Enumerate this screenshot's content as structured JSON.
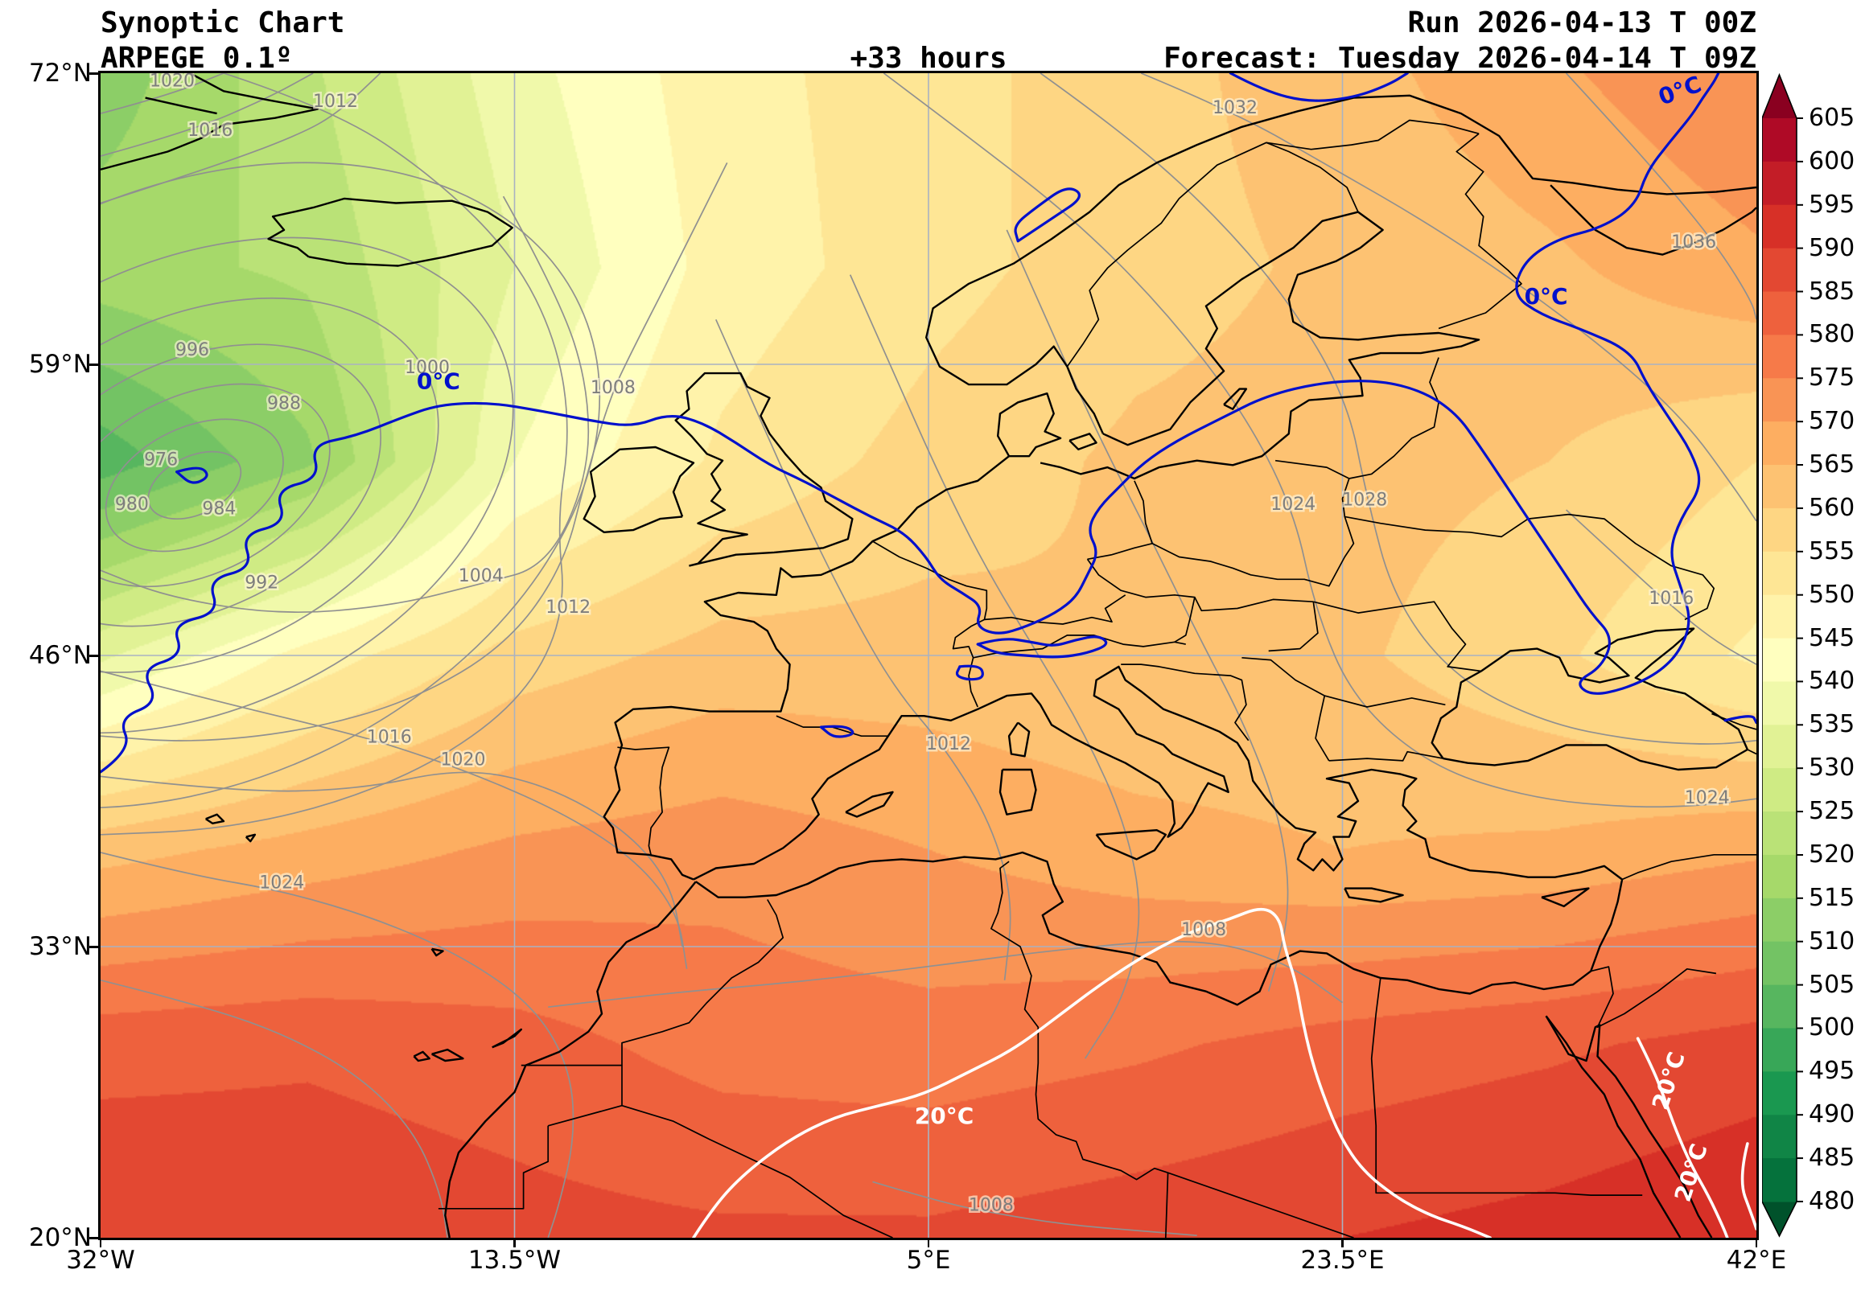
{
  "header": {
    "title": "Synoptic Chart",
    "model": "ARPEGE 0.1º",
    "lead_time": "+33 hours",
    "run": "Run 2026-04-13 T 00Z",
    "forecast": "Forecast: Tuesday 2026-04-14 T 09Z"
  },
  "axes": {
    "lat_ticks": [
      "72°N",
      "59°N",
      "46°N",
      "33°N",
      "20°N"
    ],
    "lon_ticks": [
      "32°W",
      "13.5°W",
      "5°E",
      "23.5°E",
      "42°E"
    ]
  },
  "colorbar": {
    "ticks": [
      605,
      600,
      595,
      590,
      585,
      580,
      575,
      570,
      565,
      560,
      555,
      550,
      545,
      540,
      535,
      530,
      525,
      520,
      515,
      510,
      505,
      500,
      495,
      490,
      485,
      480
    ],
    "range": [
      480,
      605
    ],
    "band_step": 5,
    "arrow_top_color": "#8a0020",
    "arrow_bottom_color": "#00522b",
    "colormap": [
      [
        0.0,
        "#006837"
      ],
      [
        0.1,
        "#1a9850"
      ],
      [
        0.2,
        "#66bd63"
      ],
      [
        0.3,
        "#a6d96a"
      ],
      [
        0.4,
        "#d9ef8b"
      ],
      [
        0.5,
        "#ffffbf"
      ],
      [
        0.6,
        "#fee08b"
      ],
      [
        0.7,
        "#fdae61"
      ],
      [
        0.8,
        "#f46d43"
      ],
      [
        0.9,
        "#d73027"
      ],
      [
        1.0,
        "#a50026"
      ]
    ]
  },
  "chart_data": {
    "type": "heatmap",
    "title": "Synoptic Chart",
    "x_axis": {
      "ticks": [
        "32°W",
        "13.5°W",
        "5°E",
        "23.5°E",
        "42°E"
      ],
      "range": [
        -32,
        42
      ]
    },
    "y_axis": {
      "ticks": [
        "72°N",
        "59°N",
        "46°N",
        "33°N",
        "20°N"
      ],
      "range": [
        20,
        72
      ]
    },
    "colorbar_range": [
      480,
      605
    ],
    "band_step": 5,
    "graticule_lons": [
      -13.5,
      5,
      23.5
    ],
    "graticule_lats": [
      59,
      46,
      33
    ],
    "grid_lons": [
      -32,
      -22.75,
      -13.5,
      -4.25,
      5,
      14.25,
      23.5,
      32.75,
      42
    ],
    "grid_lats": [
      72,
      63.33,
      54.67,
      46,
      37.33,
      28.67,
      20
    ],
    "values": [
      [
        512,
        524,
        538,
        548,
        553,
        558,
        563,
        569,
        575
      ],
      [
        518,
        521,
        535,
        547,
        553,
        558,
        561,
        564,
        569
      ],
      [
        502,
        514,
        540,
        551,
        557,
        561,
        562,
        560,
        555
      ],
      [
        534,
        547,
        557,
        562,
        562,
        560,
        561,
        556,
        549
      ],
      [
        563,
        567,
        571,
        573,
        570,
        567,
        565,
        566,
        569
      ],
      [
        583,
        584,
        582,
        578,
        577,
        579,
        582,
        584,
        587
      ],
      [
        590,
        589,
        587,
        586,
        586,
        588,
        590,
        592,
        595
      ]
    ],
    "isobar_labels": [
      {
        "text": "976",
        "lon": -29.3,
        "lat": 54.5
      },
      {
        "text": "980",
        "lon": -30.6,
        "lat": 52.5
      },
      {
        "text": "984",
        "lon": -26.7,
        "lat": 52.3
      },
      {
        "text": "988",
        "lon": -23.8,
        "lat": 57.0
      },
      {
        "text": "992",
        "lon": -24.8,
        "lat": 49.0
      },
      {
        "text": "996",
        "lon": -27.9,
        "lat": 59.4
      },
      {
        "text": "1000",
        "lon": -17.4,
        "lat": 58.6
      },
      {
        "text": "1004",
        "lon": -15.0,
        "lat": 49.3
      },
      {
        "text": "1008",
        "lon": -9.1,
        "lat": 57.7
      },
      {
        "text": "1012",
        "lon": -21.5,
        "lat": 70.5
      },
      {
        "text": "1012",
        "lon": -11.1,
        "lat": 47.9
      },
      {
        "text": "1016",
        "lon": -27.1,
        "lat": 69.2
      },
      {
        "text": "1016",
        "lon": -19.1,
        "lat": 42.1
      },
      {
        "text": "1020",
        "lon": -28.8,
        "lat": 71.4
      },
      {
        "text": "1020",
        "lon": -15.8,
        "lat": 41.1
      },
      {
        "text": "1024",
        "lon": -23.9,
        "lat": 35.6
      },
      {
        "text": "1024",
        "lon": 21.3,
        "lat": 52.5
      },
      {
        "text": "1028",
        "lon": 24.5,
        "lat": 52.7
      },
      {
        "text": "1032",
        "lon": 18.7,
        "lat": 70.2
      },
      {
        "text": "1036",
        "lon": 39.2,
        "lat": 64.2
      },
      {
        "text": "1016",
        "lon": 38.2,
        "lat": 48.3
      },
      {
        "text": "1024",
        "lon": 39.8,
        "lat": 39.4
      },
      {
        "text": "1012",
        "lon": 5.9,
        "lat": 41.8
      },
      {
        "text": "1008",
        "lon": 17.3,
        "lat": 33.5
      },
      {
        "text": "1008",
        "lon": 7.8,
        "lat": 21.2
      }
    ],
    "isotherm_labels": [
      {
        "text": "0°C",
        "lon": -16.9,
        "lat": 57.9,
        "color": "#0010cc",
        "rot": 0
      },
      {
        "text": "0°C",
        "lon": 32.6,
        "lat": 61.7,
        "color": "#0010cc",
        "rot": 0
      },
      {
        "text": "0°C",
        "lon": 38.7,
        "lat": 70.9,
        "color": "#0010cc",
        "rot": -20
      },
      {
        "text": "20°C",
        "lon": 5.7,
        "lat": 25.1,
        "color": "#ffffff",
        "rot": 0
      },
      {
        "text": "20°C",
        "lon": 38.4,
        "lat": 26.9,
        "color": "#ffffff",
        "rot": -72
      },
      {
        "text": "20°C",
        "lon": 39.4,
        "lat": 22.8,
        "color": "#ffffff",
        "rot": -72
      }
    ],
    "isotherm_colors": {
      "zero": "#0010cc",
      "twenty": "#ffffff"
    },
    "isobar_color": "#909090"
  }
}
